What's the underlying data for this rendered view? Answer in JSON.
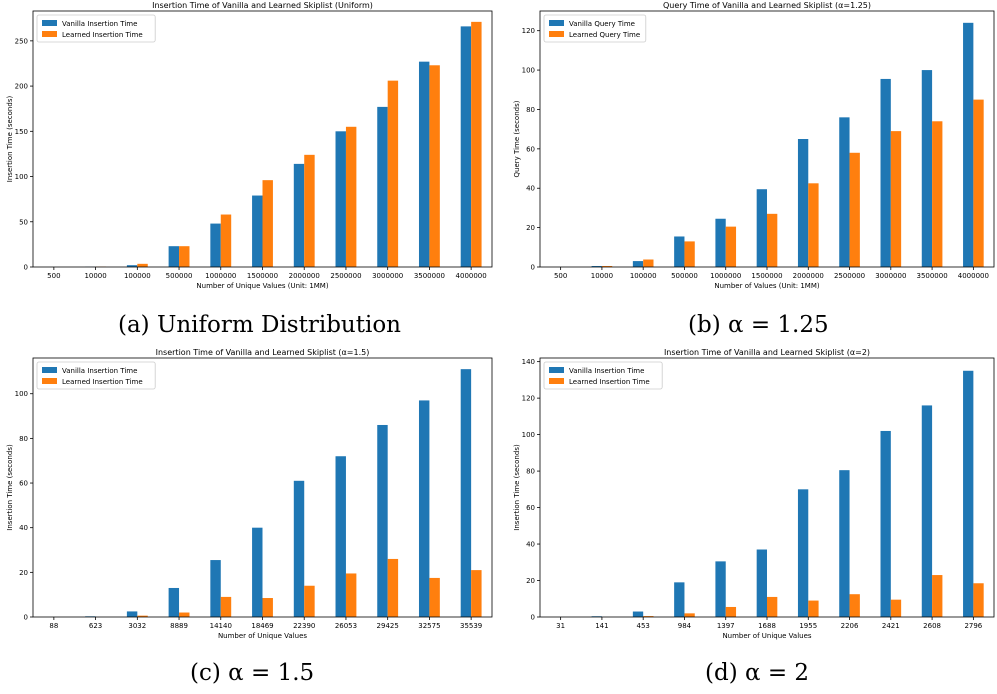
{
  "colors": {
    "vanilla": "#1f77b4",
    "learned": "#ff7f0e"
  },
  "chart_data": [
    {
      "type": "bar",
      "title": "Insertion Time of Vanilla and Learned Skiplist (Uniform)",
      "xlabel": "Number of Unique Values (Unit: 1MM)",
      "ylabel": "Insertion Time (seconds)",
      "ylim": [
        0,
        283
      ],
      "yticks": [
        0,
        50,
        100,
        150,
        200,
        250
      ],
      "legend": "top-left",
      "grid": false,
      "categories": [
        "500",
        "10000",
        "100000",
        "500000",
        "1000000",
        "1500000",
        "2000000",
        "2500000",
        "3000000",
        "3500000",
        "4000000"
      ],
      "series": [
        {
          "name": "Vanilla Insertion Time",
          "values": [
            0,
            0.2,
            2,
            23,
            48,
            79,
            114,
            150,
            177,
            227,
            266
          ]
        },
        {
          "name": "Learned Insertion Time",
          "values": [
            0,
            0.3,
            3.5,
            23,
            58,
            96,
            124,
            155,
            206,
            223,
            271
          ]
        }
      ],
      "caption": "(a) Uniform Distribution"
    },
    {
      "type": "bar",
      "title": "Query Time of Vanilla and Learned Skiplist (α=1.25)",
      "xlabel": "Number of Values (Unit: 1MM)",
      "ylabel": "Query Time (seconds)",
      "ylim": [
        0,
        130
      ],
      "yticks": [
        0,
        20,
        40,
        60,
        80,
        100,
        120
      ],
      "legend": "top-left",
      "grid": false,
      "categories": [
        "500",
        "10000",
        "100000",
        "500000",
        "1000000",
        "1500000",
        "2000000",
        "2500000",
        "3000000",
        "3500000",
        "4000000"
      ],
      "series": [
        {
          "name": "Vanilla Query Time",
          "values": [
            0,
            0.5,
            3,
            15.5,
            24.5,
            39.5,
            65,
            76,
            95.5,
            100,
            124
          ]
        },
        {
          "name": "Learned Query Time",
          "values": [
            0,
            0.5,
            3.8,
            13,
            20.5,
            27,
            42.5,
            58,
            69,
            74,
            85
          ]
        }
      ],
      "caption": "(b) α = 1.25"
    },
    {
      "type": "bar",
      "title": "Insertion Time of Vanilla and Learned Skiplist (α=1.5)",
      "xlabel": "Number of Unique Values",
      "ylabel": "Insertion Time (seconds)",
      "ylim": [
        0,
        116
      ],
      "yticks": [
        0,
        20,
        40,
        60,
        80,
        100
      ],
      "legend": "top-left",
      "grid": false,
      "categories": [
        "88",
        "623",
        "3032",
        "8889",
        "14140",
        "18469",
        "22390",
        "26053",
        "29425",
        "32575",
        "35539"
      ],
      "series": [
        {
          "name": "Vanilla Insertion Time",
          "values": [
            0,
            0.3,
            2.5,
            13,
            25.5,
            40,
            61,
            72,
            86,
            97,
            111
          ]
        },
        {
          "name": "Learned Insertion Time",
          "values": [
            0,
            0,
            0.6,
            2,
            9,
            8.5,
            14,
            19.5,
            26,
            17.5,
            21
          ]
        }
      ],
      "caption": "(c) α = 1.5"
    },
    {
      "type": "bar",
      "title": "Insertion Time of Vanilla and Learned Skiplist (α=2)",
      "xlabel": "Number of Unique Values",
      "ylabel": "Insertion Time (seconds)",
      "ylim": [
        0,
        142
      ],
      "yticks": [
        0,
        20,
        40,
        60,
        80,
        100,
        120,
        140
      ],
      "legend": "top-left",
      "grid": false,
      "categories": [
        "31",
        "141",
        "453",
        "984",
        "1397",
        "1688",
        "1955",
        "2206",
        "2421",
        "2608",
        "2796"
      ],
      "series": [
        {
          "name": "Vanilla Insertion Time",
          "values": [
            0,
            0.4,
            3,
            19,
            30.5,
            37,
            70,
            80.5,
            102,
            116,
            135
          ]
        },
        {
          "name": "Learned Insertion Time",
          "values": [
            0,
            0,
            0.5,
            2,
            5.5,
            11,
            9,
            12.5,
            9.5,
            23,
            18.5
          ]
        }
      ],
      "caption": "(d) α = 2"
    }
  ]
}
